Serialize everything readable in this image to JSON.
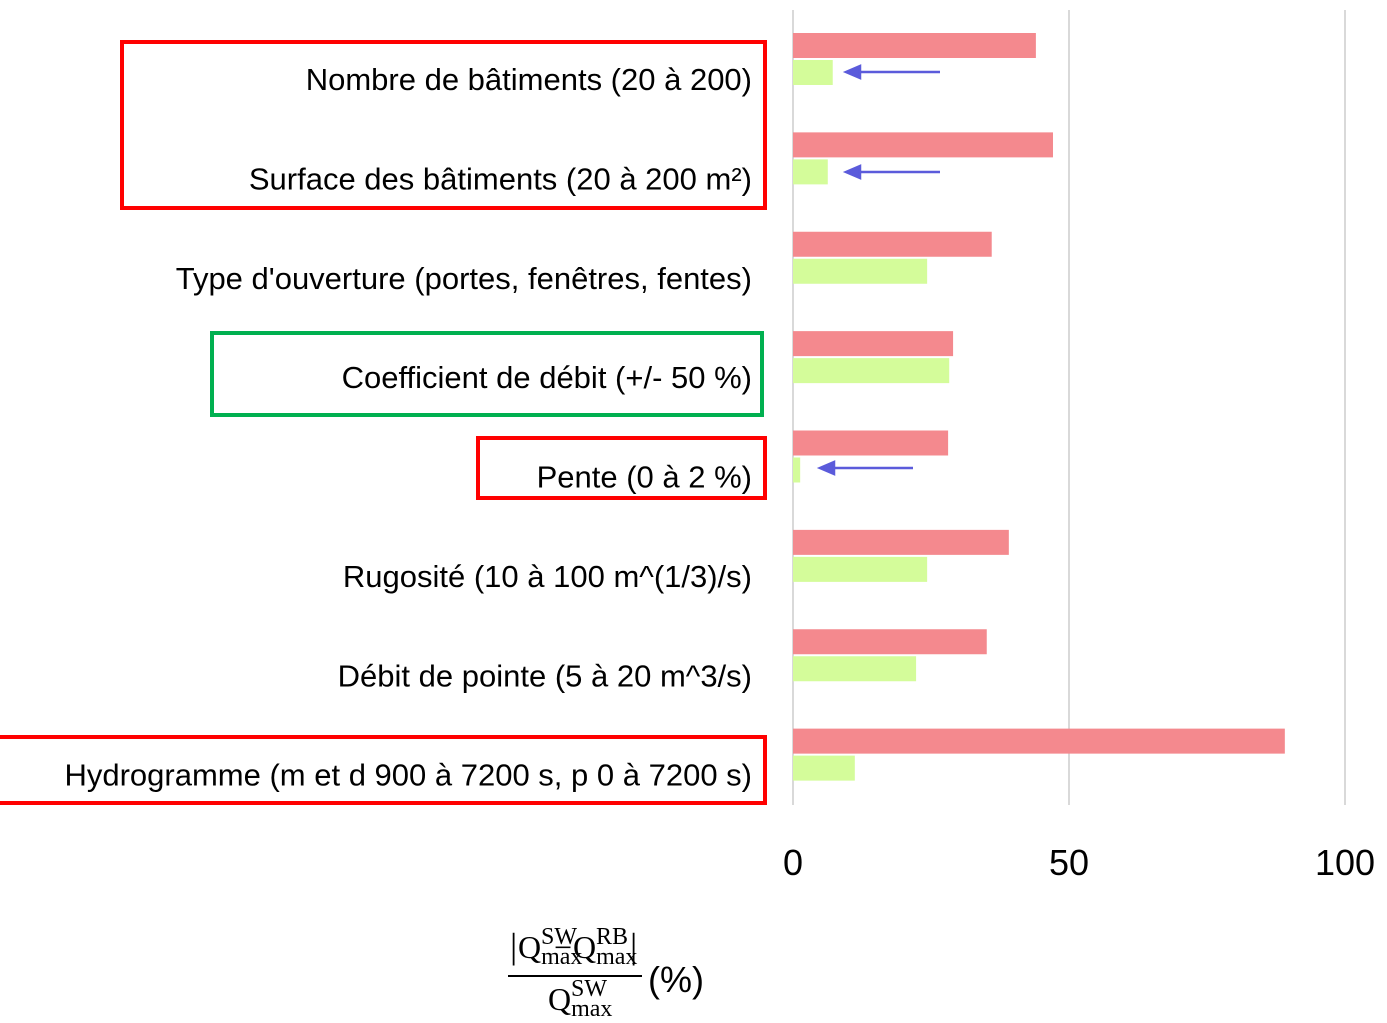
{
  "chart_data": {
    "type": "barh",
    "categories": [
      "Nombre de bâtiments (20 à 200)",
      "Surface des bâtiments (20 à 200 m²)",
      "Type d'ouverture (portes, fenêtres, fentes)",
      "Coefficient de débit (+/- 50 %)",
      "Pente (0 à 2 %)",
      "Rugosité (10 à 100 m^(1/3)/s)",
      "Débit de pointe (5 à 20 m^3/s)",
      "Hydrogramme (m et d 900 à 7200 s, p 0 à 7200 s)"
    ],
    "series": [
      {
        "color": "#f4898e",
        "values": [
          44,
          47.1,
          36,
          29,
          28.1,
          39.1,
          35.1,
          89.1
        ]
      },
      {
        "color": "#d4fc9a",
        "values": [
          7.2,
          6.3,
          24.3,
          28.3,
          1.3,
          24.3,
          22.3,
          11.2
        ]
      }
    ],
    "xlim": [
      0,
      100
    ],
    "xticks": [
      0,
      50,
      100
    ],
    "grid": true,
    "x_label": {
      "left_bar": "|",
      "minus": "−",
      "right_bar": "|",
      "unit": "(%)",
      "numerator": [
        {
          "base": "Q",
          "sub": "max",
          "sup": "SW"
        },
        {
          "base": "Q",
          "sub": "max",
          "sup": "RB"
        }
      ],
      "denominator": {
        "base": "Q",
        "sub": "max",
        "sup": "SW"
      }
    }
  }
}
